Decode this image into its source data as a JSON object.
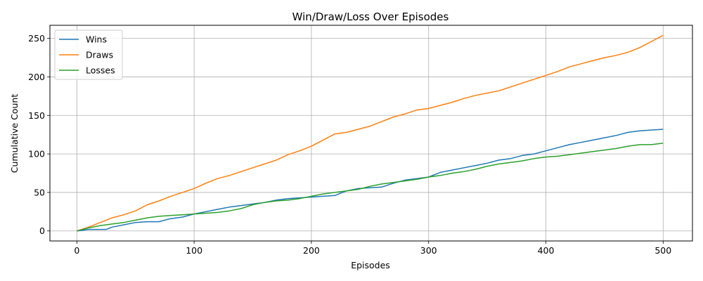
{
  "chart_data": {
    "type": "line",
    "title": "Win/Draw/Loss Over Episodes",
    "xlabel": "Episodes",
    "ylabel": "Cumulative Count",
    "xlim": [
      -23,
      525
    ],
    "ylim": [
      -13,
      267
    ],
    "xticks": [
      0,
      100,
      200,
      300,
      400,
      500
    ],
    "yticks": [
      0,
      50,
      100,
      150,
      200,
      250
    ],
    "grid": true,
    "legend_position": "top-left",
    "series": [
      {
        "name": "Wins",
        "color": "#1f77b4",
        "x": [
          0,
          10,
          25,
          30,
          40,
          50,
          60,
          70,
          80,
          90,
          100,
          110,
          120,
          130,
          140,
          150,
          160,
          170,
          180,
          190,
          200,
          210,
          220,
          230,
          240,
          250,
          260,
          270,
          280,
          290,
          300,
          310,
          320,
          330,
          340,
          350,
          360,
          370,
          380,
          390,
          400,
          410,
          420,
          430,
          440,
          450,
          460,
          470,
          480,
          490,
          500
        ],
        "y": [
          0,
          2,
          2,
          5,
          8,
          11,
          12,
          12,
          16,
          18,
          22,
          25,
          28,
          31,
          33,
          35,
          37,
          40,
          42,
          43,
          44,
          45,
          46,
          52,
          55,
          56,
          57,
          62,
          66,
          68,
          70,
          76,
          79,
          82,
          85,
          88,
          92,
          94,
          98,
          100,
          104,
          108,
          112,
          115,
          118,
          121,
          124,
          128,
          130,
          131,
          132
        ]
      },
      {
        "name": "Draws",
        "color": "#ff7f0e",
        "x": [
          0,
          10,
          20,
          30,
          40,
          50,
          60,
          70,
          80,
          90,
          100,
          110,
          120,
          130,
          140,
          150,
          160,
          170,
          180,
          190,
          200,
          210,
          220,
          230,
          240,
          250,
          260,
          270,
          280,
          290,
          300,
          310,
          320,
          330,
          340,
          350,
          360,
          370,
          380,
          390,
          400,
          410,
          420,
          430,
          440,
          450,
          460,
          470,
          480,
          490,
          500
        ],
        "y": [
          0,
          5,
          11,
          17,
          21,
          26,
          34,
          39,
          45,
          50,
          55,
          62,
          68,
          72,
          77,
          82,
          87,
          92,
          99,
          104,
          110,
          118,
          126,
          128,
          132,
          136,
          142,
          148,
          152,
          157,
          159,
          163,
          167,
          172,
          176,
          179,
          182,
          187,
          192,
          197,
          202,
          207,
          213,
          217,
          221,
          225,
          228,
          232,
          238,
          246,
          254
        ]
      },
      {
        "name": "Losses",
        "color": "#2ca02c",
        "x": [
          0,
          10,
          20,
          30,
          40,
          50,
          60,
          70,
          80,
          90,
          100,
          110,
          120,
          130,
          140,
          150,
          160,
          170,
          180,
          190,
          200,
          210,
          220,
          230,
          240,
          250,
          260,
          270,
          280,
          290,
          300,
          310,
          320,
          330,
          340,
          350,
          360,
          370,
          380,
          390,
          400,
          410,
          420,
          430,
          440,
          450,
          460,
          470,
          480,
          490,
          500
        ],
        "y": [
          0,
          4,
          7,
          9,
          11,
          14,
          17,
          19,
          20,
          21,
          22,
          23,
          24,
          26,
          29,
          34,
          37,
          39,
          40,
          42,
          45,
          48,
          50,
          52,
          54,
          58,
          61,
          63,
          65,
          67,
          70,
          72,
          75,
          77,
          80,
          84,
          87,
          89,
          91,
          94,
          96,
          97,
          99,
          101,
          103,
          105,
          107,
          110,
          112,
          112,
          114
        ]
      }
    ]
  }
}
